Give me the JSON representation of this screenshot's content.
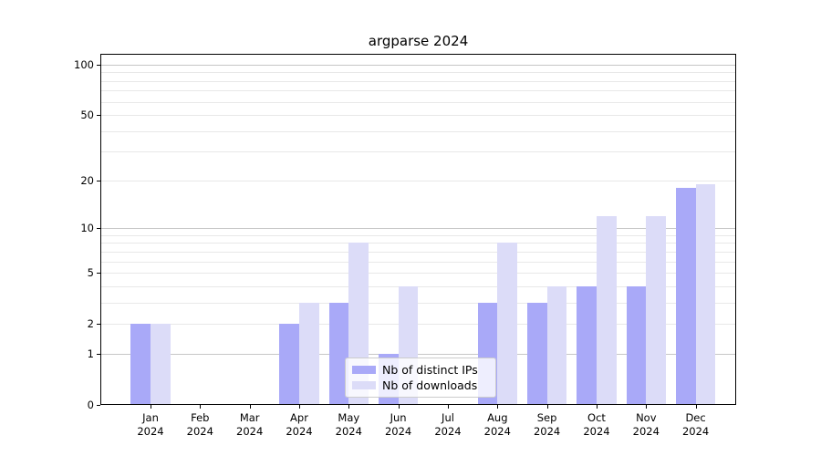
{
  "title": "argparse 2024",
  "legend": {
    "items": [
      {
        "label": "Nb of distinct IPs",
        "color": "#a9a9f8"
      },
      {
        "label": "Nb of downloads",
        "color": "#dcdcf8"
      }
    ]
  },
  "colors": {
    "bar_distinct_ips": "#a9a9f8",
    "bar_downloads": "#dcdcf8",
    "grid_major": "#c6c6c6",
    "grid_minor": "#e8e8e8",
    "axis": "#000000",
    "background": "#ffffff"
  },
  "chart_data": {
    "type": "bar",
    "title": "argparse 2024",
    "categories": [
      "Jan",
      "Feb",
      "Mar",
      "Apr",
      "May",
      "Jun",
      "Jul",
      "Aug",
      "Sep",
      "Oct",
      "Nov",
      "Dec"
    ],
    "category_year": "2024",
    "series": [
      {
        "name": "Nb of distinct IPs",
        "color": "#a9a9f8",
        "values": [
          2,
          0,
          0,
          2,
          3,
          1,
          0,
          3,
          3,
          4,
          4,
          18
        ]
      },
      {
        "name": "Nb of downloads",
        "color": "#dcdcf8",
        "values": [
          2,
          0,
          0,
          3,
          8,
          4,
          0,
          8,
          4,
          12,
          12,
          19
        ]
      }
    ],
    "xlabel": "",
    "ylabel": "",
    "yscale": "log1p",
    "ylim": [
      0,
      115
    ],
    "y_ticks": [
      0,
      1,
      2,
      5,
      10,
      20,
      50,
      100
    ],
    "grid": true,
    "grid_major_at": [
      1,
      10,
      100
    ],
    "grid_minor_at": [
      2,
      3,
      4,
      5,
      6,
      7,
      8,
      9,
      20,
      30,
      40,
      50,
      60,
      70,
      80,
      90
    ],
    "legend_position": "lower center"
  }
}
